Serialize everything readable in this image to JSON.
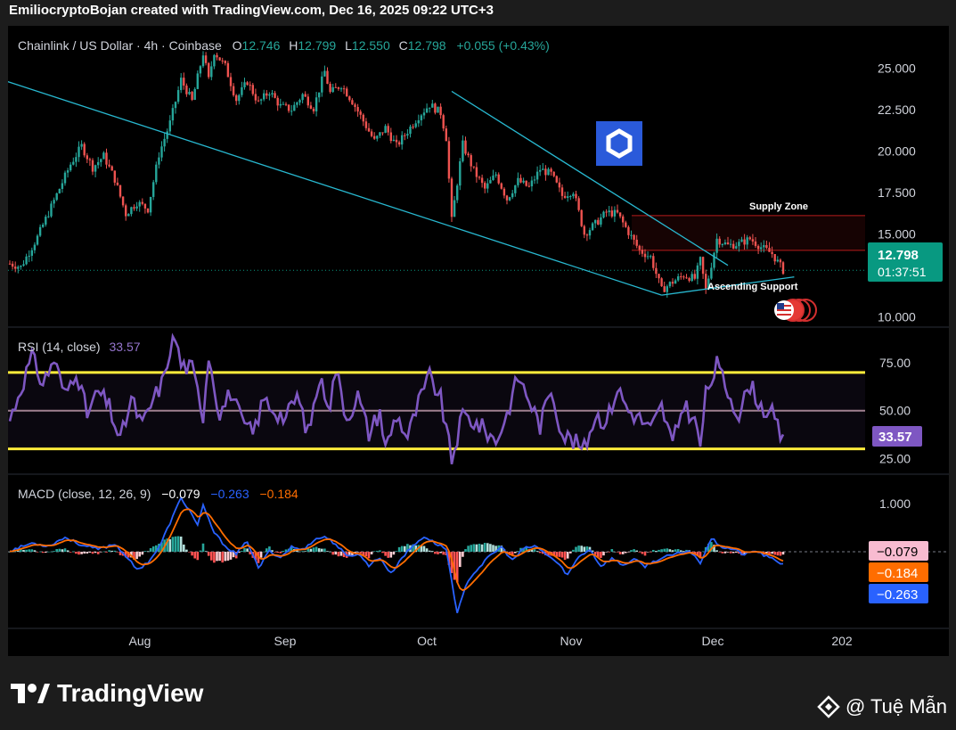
{
  "header": {
    "text": "EmiliocryptoBojan created with TradingView.com, Dec 16, 2025 09:22 UTC+3"
  },
  "footer": {
    "brand": "TradingView",
    "credit": "@ Tuệ Mẫn"
  },
  "colors": {
    "up": "#26a69a",
    "down": "#ef5350",
    "trendline": "#28b8d0",
    "rsi": "#7e57c2",
    "rsi_band": "#ffeb3b",
    "macd": "#2962ff",
    "signal": "#ff6d00",
    "price_label": "#089981"
  },
  "chart_data": [
    {
      "type": "candlestick",
      "title": "Chainlink / US Dollar · 4h · Coinbase",
      "ohlc": {
        "o_label": "O",
        "o": "12.746",
        "h_label": "H",
        "h": "12.799",
        "l_label": "L",
        "l": "12.550",
        "c_label": "C",
        "c": "12.798",
        "change": "+0.055 (+0.43%)"
      },
      "x_ticks": [
        "Aug",
        "Sep",
        "Oct",
        "Nov",
        "Dec",
        "202"
      ],
      "y_ticks": [
        "25.000",
        "22.500",
        "20.000",
        "17.500",
        "15.000",
        "10.000"
      ],
      "ylim": [
        9.8,
        26.8
      ],
      "last_price": {
        "value": "12.798",
        "countdown": "01:37:51"
      },
      "annotations": {
        "supply": "Supply Zone",
        "support": "Ascending Support"
      },
      "supply_zone": [
        14.0,
        16.1
      ],
      "close_anchors": [
        [
          0,
          13.2
        ],
        [
          4,
          13.0
        ],
        [
          10,
          14.8
        ],
        [
          16,
          17.0
        ],
        [
          22,
          19.2
        ],
        [
          26,
          20.3
        ],
        [
          30,
          19.0
        ],
        [
          34,
          19.7
        ],
        [
          38,
          18.3
        ],
        [
          42,
          16.2
        ],
        [
          46,
          16.9
        ],
        [
          50,
          16.5
        ],
        [
          54,
          19.8
        ],
        [
          58,
          21.7
        ],
        [
          62,
          24.3
        ],
        [
          66,
          23.0
        ],
        [
          70,
          25.9
        ],
        [
          72,
          24.3
        ],
        [
          74,
          26.0
        ],
        [
          78,
          25.1
        ],
        [
          82,
          23.1
        ],
        [
          86,
          24.2
        ],
        [
          90,
          22.9
        ],
        [
          94,
          23.6
        ],
        [
          98,
          22.7
        ],
        [
          102,
          22.5
        ],
        [
          106,
          23.4
        ],
        [
          110,
          22.6
        ],
        [
          114,
          24.8
        ],
        [
          116,
          23.5
        ],
        [
          120,
          24.0
        ],
        [
          124,
          23.0
        ],
        [
          128,
          21.8
        ],
        [
          132,
          20.6
        ],
        [
          136,
          21.4
        ],
        [
          140,
          20.3
        ],
        [
          144,
          21.2
        ],
        [
          148,
          22.1
        ],
        [
          152,
          22.8
        ],
        [
          156,
          22.3
        ],
        [
          158,
          20.8
        ],
        [
          160,
          15.8
        ],
        [
          164,
          20.4
        ],
        [
          168,
          18.8
        ],
        [
          172,
          17.7
        ],
        [
          176,
          18.6
        ],
        [
          180,
          17.1
        ],
        [
          184,
          18.2
        ],
        [
          188,
          17.8
        ],
        [
          192,
          18.9
        ],
        [
          196,
          18.6
        ],
        [
          200,
          17.3
        ],
        [
          204,
          17.6
        ],
        [
          208,
          15.0
        ],
        [
          212,
          15.6
        ],
        [
          216,
          16.3
        ],
        [
          220,
          16.2
        ],
        [
          224,
          15.1
        ],
        [
          228,
          14.0
        ],
        [
          232,
          13.6
        ],
        [
          236,
          11.6
        ],
        [
          240,
          12.1
        ],
        [
          244,
          12.5
        ],
        [
          248,
          12.3
        ],
        [
          250,
          13.4
        ],
        [
          252,
          11.6
        ],
        [
          256,
          14.7
        ],
        [
          260,
          14.3
        ],
        [
          264,
          14.4
        ],
        [
          268,
          14.7
        ],
        [
          272,
          14.2
        ],
        [
          276,
          13.8
        ],
        [
          280,
          12.8
        ]
      ],
      "trend_lines": [
        {
          "from": [
            -1,
            24.2
          ],
          "to": [
            236,
            11.3
          ]
        },
        {
          "from": [
            160,
            23.6
          ],
          "to": [
            260,
            13.1
          ]
        },
        {
          "from": [
            236,
            11.3
          ],
          "to": [
            284,
            12.4
          ]
        }
      ]
    },
    {
      "type": "line",
      "title": "RSI (14, close)",
      "value": "33.57",
      "y_ticks": [
        "75.00",
        "50.00",
        "25.00"
      ],
      "ylim": [
        20,
        90
      ],
      "bands": [
        70,
        50,
        30
      ],
      "anchors": [
        [
          0,
          45
        ],
        [
          4,
          62
        ],
        [
          8,
          78
        ],
        [
          12,
          64
        ],
        [
          16,
          77
        ],
        [
          20,
          58
        ],
        [
          24,
          72
        ],
        [
          28,
          48
        ],
        [
          32,
          60
        ],
        [
          36,
          52
        ],
        [
          40,
          34
        ],
        [
          44,
          56
        ],
        [
          48,
          42
        ],
        [
          52,
          56
        ],
        [
          56,
          67
        ],
        [
          58,
          83
        ],
        [
          60,
          88
        ],
        [
          62,
          74
        ],
        [
          66,
          72
        ],
        [
          70,
          48
        ],
        [
          72,
          80
        ],
        [
          76,
          48
        ],
        [
          80,
          60
        ],
        [
          84,
          44
        ],
        [
          88,
          38
        ],
        [
          92,
          56
        ],
        [
          96,
          50
        ],
        [
          100,
          46
        ],
        [
          104,
          58
        ],
        [
          108,
          38
        ],
        [
          112,
          66
        ],
        [
          116,
          54
        ],
        [
          118,
          72
        ],
        [
          122,
          46
        ],
        [
          126,
          58
        ],
        [
          130,
          38
        ],
        [
          134,
          50
        ],
        [
          136,
          30
        ],
        [
          140,
          48
        ],
        [
          144,
          36
        ],
        [
          148,
          54
        ],
        [
          152,
          68
        ],
        [
          156,
          56
        ],
        [
          160,
          24
        ],
        [
          164,
          48
        ],
        [
          168,
          44
        ],
        [
          172,
          40
        ],
        [
          176,
          34
        ],
        [
          180,
          48
        ],
        [
          184,
          68
        ],
        [
          188,
          56
        ],
        [
          192,
          42
        ],
        [
          196,
          62
        ],
        [
          200,
          38
        ],
        [
          204,
          34
        ],
        [
          208,
          30
        ],
        [
          212,
          48
        ],
        [
          216,
          44
        ],
        [
          220,
          62
        ],
        [
          224,
          50
        ],
        [
          228,
          46
        ],
        [
          232,
          40
        ],
        [
          236,
          52
        ],
        [
          240,
          32
        ],
        [
          244,
          54
        ],
        [
          248,
          44
        ],
        [
          250,
          32
        ],
        [
          252,
          58
        ],
        [
          256,
          74
        ],
        [
          260,
          60
        ],
        [
          264,
          48
        ],
        [
          268,
          64
        ],
        [
          272,
          52
        ],
        [
          276,
          48
        ],
        [
          280,
          33.6
        ]
      ]
    },
    {
      "type": "line",
      "title": "MACD (close, 12, 26, 9)",
      "values": {
        "hist": "−0.079",
        "macd": "−0.263",
        "signal": "−0.184"
      },
      "y_ticks": [
        "1.000"
      ],
      "ylim": [
        -1.45,
        1.45
      ],
      "anchors": [
        [
          0,
          0.02
        ],
        [
          8,
          0.18
        ],
        [
          14,
          0.12
        ],
        [
          20,
          0.3
        ],
        [
          26,
          0.14
        ],
        [
          32,
          0.05
        ],
        [
          38,
          0.16
        ],
        [
          42,
          -0.08
        ],
        [
          46,
          -0.38
        ],
        [
          50,
          -0.22
        ],
        [
          54,
          0.08
        ],
        [
          58,
          0.6
        ],
        [
          62,
          1.12
        ],
        [
          66,
          0.78
        ],
        [
          68,
          0.55
        ],
        [
          70,
          0.95
        ],
        [
          74,
          0.4
        ],
        [
          78,
          0.12
        ],
        [
          82,
          -0.05
        ],
        [
          86,
          0.22
        ],
        [
          90,
          -0.35
        ],
        [
          94,
          0.02
        ],
        [
          98,
          -0.12
        ],
        [
          102,
          0.1
        ],
        [
          106,
          0.04
        ],
        [
          110,
          0.24
        ],
        [
          114,
          0.32
        ],
        [
          118,
          0.16
        ],
        [
          122,
          -0.1
        ],
        [
          126,
          -0.04
        ],
        [
          130,
          -0.28
        ],
        [
          134,
          -0.12
        ],
        [
          138,
          -0.46
        ],
        [
          142,
          -0.12
        ],
        [
          146,
          0.12
        ],
        [
          150,
          0.32
        ],
        [
          154,
          0.18
        ],
        [
          158,
          0.06
        ],
        [
          162,
          -1.28
        ],
        [
          166,
          -0.58
        ],
        [
          170,
          -0.32
        ],
        [
          174,
          -0.08
        ],
        [
          178,
          0.1
        ],
        [
          182,
          -0.18
        ],
        [
          186,
          0.06
        ],
        [
          190,
          0.12
        ],
        [
          194,
          -0.04
        ],
        [
          198,
          -0.22
        ],
        [
          202,
          -0.48
        ],
        [
          206,
          -0.1
        ],
        [
          210,
          0.05
        ],
        [
          214,
          -0.3
        ],
        [
          218,
          -0.14
        ],
        [
          222,
          -0.28
        ],
        [
          226,
          -0.16
        ],
        [
          230,
          -0.3
        ],
        [
          234,
          -0.18
        ],
        [
          238,
          -0.1
        ],
        [
          242,
          -0.04
        ],
        [
          246,
          0.02
        ],
        [
          250,
          -0.22
        ],
        [
          254,
          0.28
        ],
        [
          258,
          0.1
        ],
        [
          262,
          0.05
        ],
        [
          266,
          -0.06
        ],
        [
          270,
          0.02
        ],
        [
          274,
          -0.1
        ],
        [
          278,
          -0.2
        ],
        [
          280,
          -0.263
        ]
      ]
    }
  ]
}
